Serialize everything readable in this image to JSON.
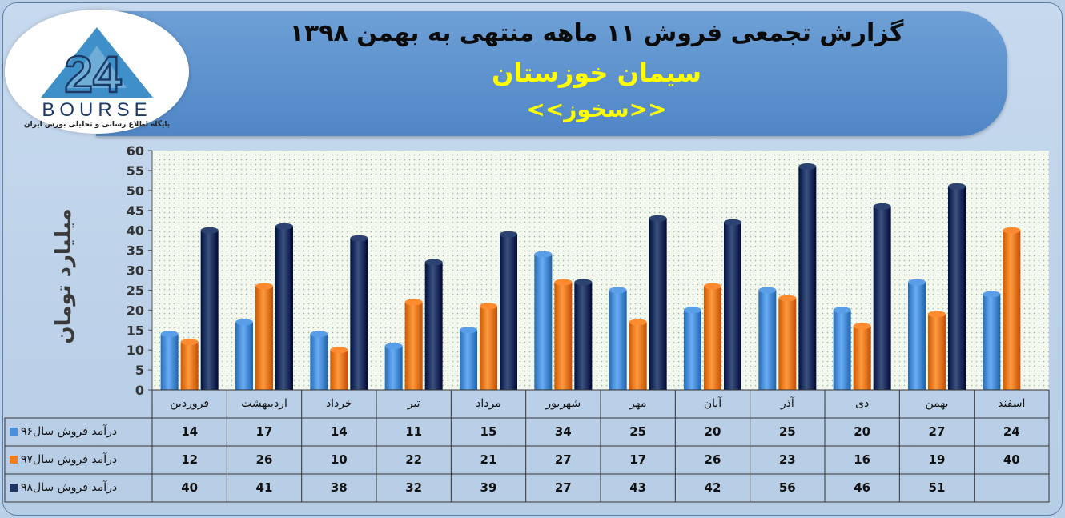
{
  "header": {
    "title": "گزارش تجمعی فروش ۱۱ ماهه منتهی به بهمن ۱۳۹۸",
    "subtitle": "سیمان خوزستان",
    "ticker": "<<سخوز>>"
  },
  "logo": {
    "word": "BOURSE",
    "tagline": "پایگاه اطلاع رسانی و تحلیلی بورس ایران",
    "mark": "24"
  },
  "chart_data": {
    "type": "bar",
    "ylabel": "میلیارد تومان",
    "ylim": [
      0,
      60
    ],
    "yticks": [
      0,
      5,
      10,
      15,
      20,
      25,
      30,
      35,
      40,
      45,
      50,
      55,
      60
    ],
    "categories": [
      "فروردین",
      "اردیبهشت",
      "خرداد",
      "تیر",
      "مرداد",
      "شهریور",
      "مهر",
      "آبان",
      "آذر",
      "دی",
      "بهمن",
      "اسفند"
    ],
    "series": [
      {
        "name": "درآمد فروش سال۹۶",
        "color": "#4a8fd8",
        "values": [
          14,
          17,
          14,
          11,
          15,
          34,
          25,
          20,
          25,
          20,
          27,
          24
        ]
      },
      {
        "name": "درآمد فروش سال۹۷",
        "color": "#f07c22",
        "values": [
          12,
          26,
          10,
          22,
          21,
          27,
          17,
          26,
          23,
          16,
          19,
          40
        ]
      },
      {
        "name": "درآمد فروش سال۹۸",
        "color": "#1d3462",
        "values": [
          40,
          41,
          38,
          32,
          39,
          27,
          43,
          42,
          56,
          46,
          51,
          null
        ]
      }
    ],
    "legend": "table-left",
    "grid": false
  }
}
